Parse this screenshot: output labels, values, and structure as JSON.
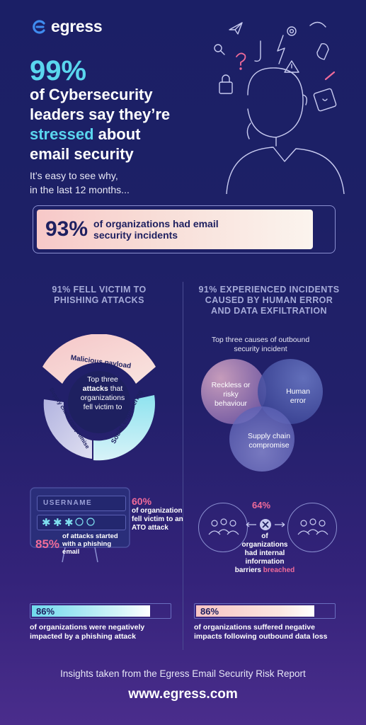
{
  "brand": {
    "name": "egress",
    "accent": "#5ad6ee",
    "pink": "#f06b9a"
  },
  "hero": {
    "stat": "99%",
    "line1": "of Cybersecurity",
    "line2": "leaders say they’re",
    "highlight": "stressed",
    "line3_rest": " about",
    "line4": "email security",
    "sub1": "It’s easy to see why,",
    "sub2": "in the last 12 months..."
  },
  "banner": {
    "pct": "93%",
    "text": "of organizations had email security incidents"
  },
  "left_section": {
    "title_line1": "91% FELL VICTIM TO",
    "title_line2": "PHISHING ATTACKS",
    "donut": {
      "center_1": "Top three",
      "center_bold": "attacks",
      "center_2": "that",
      "center_3": "organizations",
      "center_4": "fell victim to",
      "segments": [
        "Malicious payload",
        "Social engineering",
        "Supply chain compromise"
      ]
    },
    "login": {
      "username_label": "USERNAME",
      "stat60_pct": "60%",
      "stat60_text": "of organization fell victim to an ATO attack",
      "stat85_pct": "85%",
      "stat85_text": "of attacks started with a phishing email"
    },
    "bar": {
      "pct": "86%",
      "value": 0.86,
      "caption": "of organizations were negatively impacted by a phishing attack"
    }
  },
  "right_section": {
    "title_line1": "91% EXPERIENCED INCIDENTS",
    "title_line2": "CAUSED BY HUMAN ERROR",
    "title_line3": "AND DATA EXFILTRATION",
    "venn": {
      "title": "Top three causes of outbound security incident",
      "a": "Reckless or risky behaviour",
      "b": "Human error",
      "c": "Supply chain compromise"
    },
    "barrier": {
      "pct": "64%",
      "text_1": "of",
      "text_2": "organizations",
      "text_3": "had internal information",
      "text_4": "barriers",
      "text_pink": "breached"
    },
    "bar": {
      "pct": "86%",
      "value": 0.86,
      "caption": "of organizations suffered negative impacts following outbound data loss"
    }
  },
  "footer": {
    "note": "Insights taken from the Egress Email Security Risk Report",
    "url": "www.egress.com"
  }
}
